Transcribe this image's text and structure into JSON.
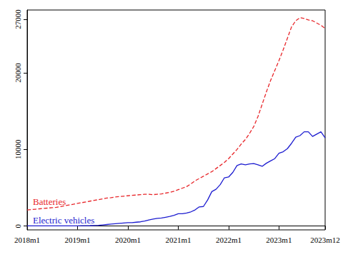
{
  "chart_data": {
    "type": "line",
    "categories": [
      "2018m1",
      null,
      null,
      null,
      null,
      null,
      null,
      null,
      null,
      null,
      null,
      null,
      "2019m1",
      null,
      null,
      null,
      null,
      null,
      null,
      null,
      null,
      null,
      null,
      null,
      "2020m1",
      null,
      null,
      null,
      null,
      null,
      null,
      null,
      null,
      null,
      null,
      null,
      "2021m1",
      null,
      null,
      null,
      null,
      null,
      null,
      null,
      null,
      null,
      null,
      null,
      "2022m1",
      null,
      null,
      null,
      null,
      null,
      null,
      null,
      null,
      null,
      null,
      null,
      "2023m1",
      null,
      null,
      null,
      null,
      null,
      null,
      null,
      null,
      null,
      null,
      "2023m12"
    ],
    "series": [
      {
        "name": "Batteries",
        "color": "#e8262a",
        "line_style": "dashed",
        "values": [
          2100,
          2150,
          2200,
          2250,
          2300,
          2350,
          2400,
          2450,
          2550,
          2650,
          2750,
          2850,
          2950,
          3050,
          3150,
          3250,
          3350,
          3450,
          3550,
          3650,
          3700,
          3800,
          3850,
          3900,
          3950,
          4000,
          4050,
          4100,
          4150,
          4150,
          4100,
          4150,
          4200,
          4300,
          4400,
          4550,
          4750,
          4950,
          5150,
          5500,
          5900,
          6200,
          6500,
          6800,
          7100,
          7500,
          7900,
          8300,
          8800,
          9400,
          10000,
          10700,
          11300,
          12100,
          13000,
          14300,
          15900,
          17500,
          19000,
          20300,
          21600,
          23000,
          24500,
          26000,
          26800,
          27200,
          27100,
          26900,
          26800,
          26500,
          26200,
          25800
        ]
      },
      {
        "name": "Electric vehicles",
        "color": "#1c1cd0",
        "line_style": "solid",
        "values": [
          20,
          20,
          20,
          20,
          20,
          20,
          20,
          20,
          20,
          30,
          30,
          30,
          30,
          40,
          50,
          60,
          80,
          100,
          150,
          200,
          250,
          300,
          350,
          400,
          450,
          450,
          500,
          550,
          650,
          800,
          900,
          1000,
          1050,
          1150,
          1250,
          1400,
          1600,
          1600,
          1700,
          1850,
          2100,
          2500,
          2550,
          3400,
          4500,
          4800,
          5400,
          6300,
          6400,
          7000,
          7900,
          8100,
          8000,
          8100,
          8150,
          8000,
          7800,
          8200,
          8500,
          8800,
          9500,
          9700,
          10100,
          10800,
          11600,
          11800,
          12300,
          12300,
          11700,
          12000,
          12300,
          11500
        ]
      }
    ],
    "ylim": [
      -500,
      28200
    ],
    "yticks": [
      0,
      10000,
      20000,
      27000
    ],
    "grid": false,
    "legend": false
  }
}
